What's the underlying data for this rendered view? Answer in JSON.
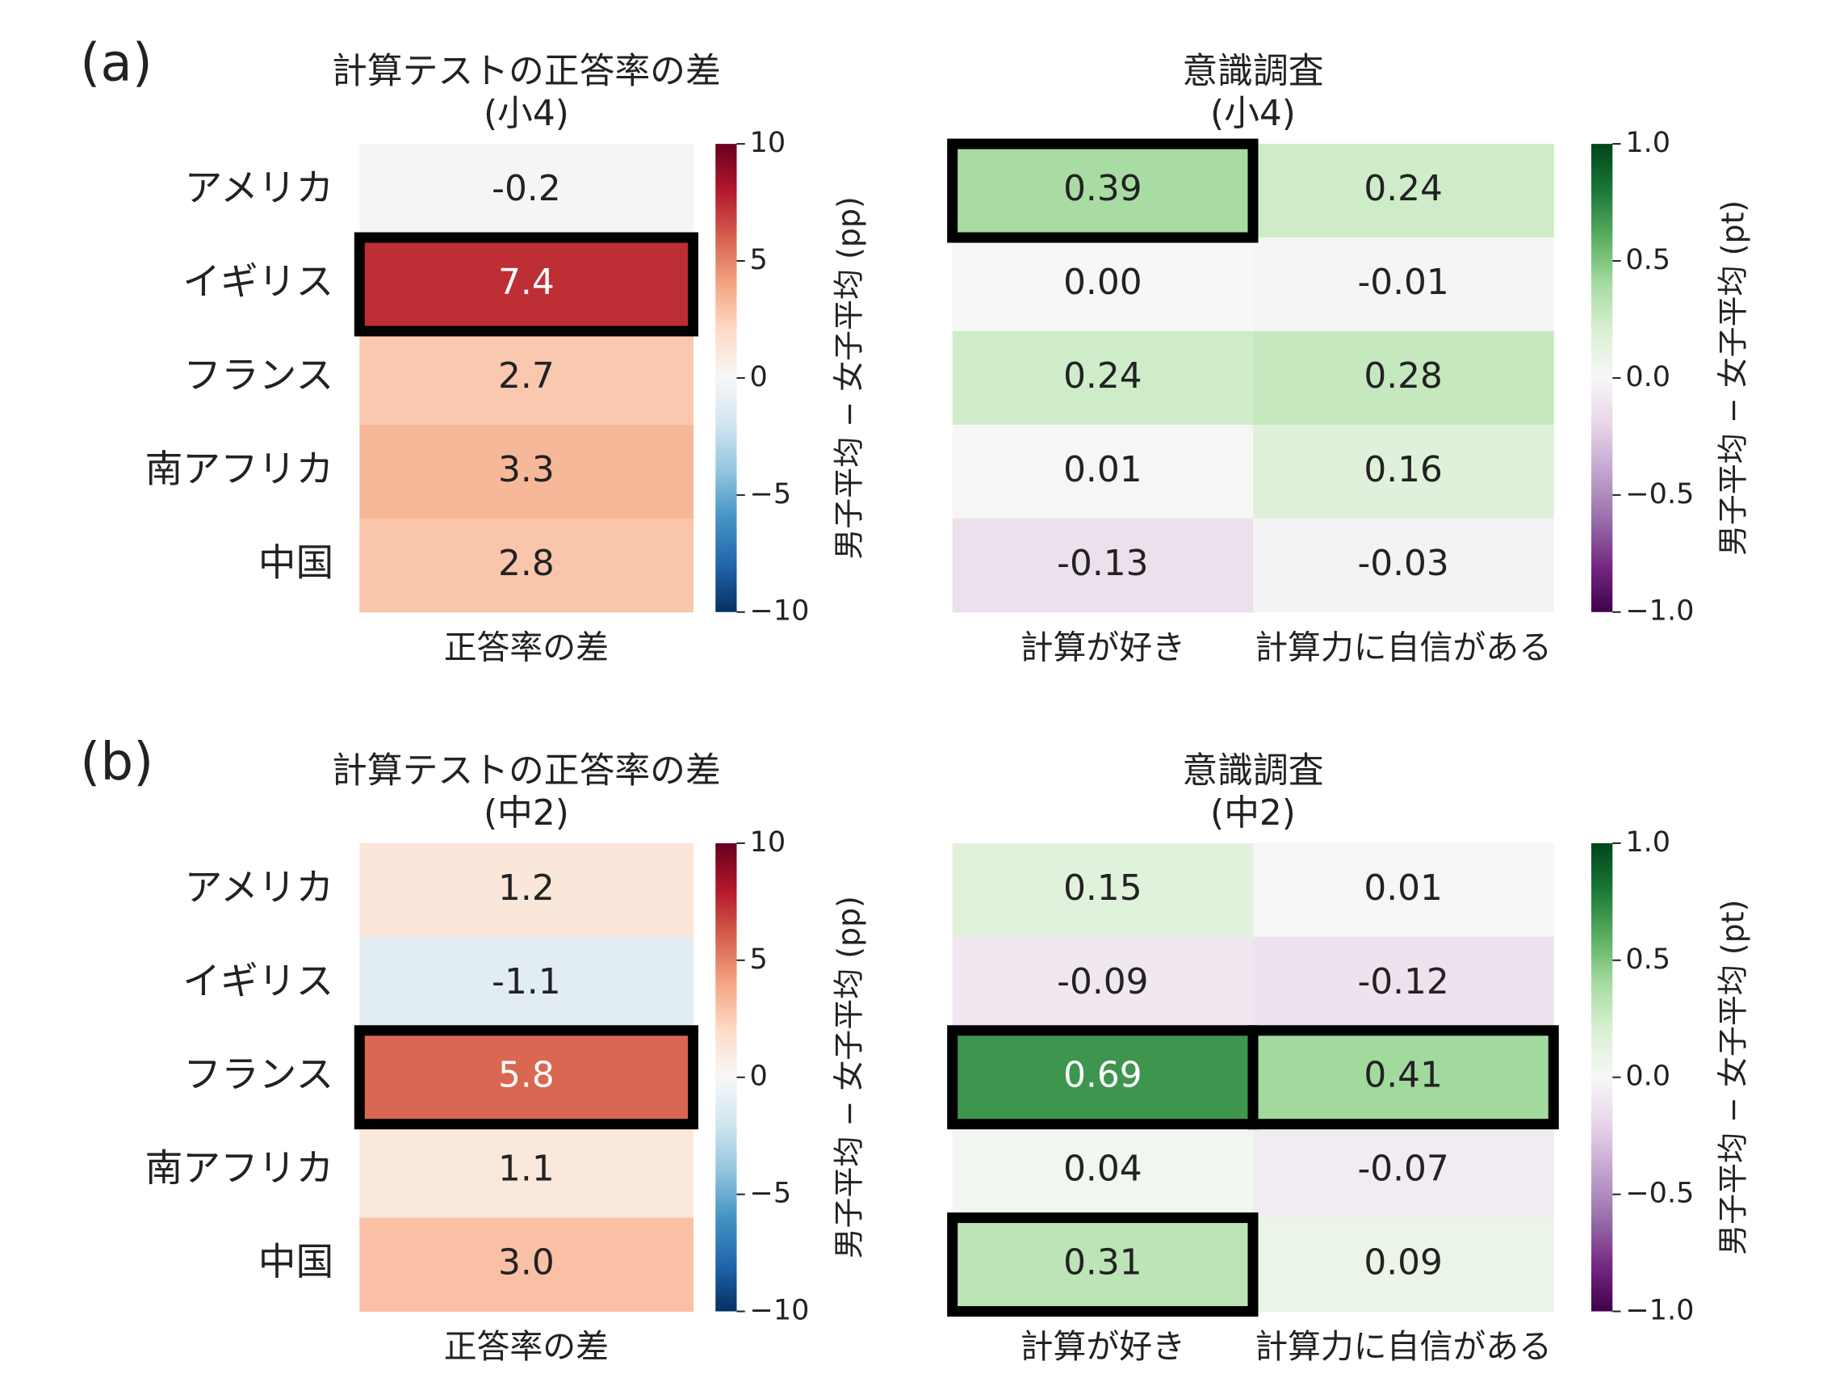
{
  "chart_data": [
    {
      "type": "heatmap",
      "panel_label": "(a)",
      "title": [
        "計算テストの正答率の差",
        "(小4)"
      ],
      "rows": [
        "アメリカ",
        "イギリス",
        "フランス",
        "南アフリカ",
        "中国"
      ],
      "columns": [
        "正答率の差"
      ],
      "values": [
        [
          -0.2
        ],
        [
          7.4
        ],
        [
          2.7
        ],
        [
          3.3
        ],
        [
          2.8
        ]
      ],
      "value_labels": [
        [
          "-0.2"
        ],
        [
          "7.4"
        ],
        [
          "2.7"
        ],
        [
          "3.3"
        ],
        [
          "2.8"
        ]
      ],
      "highlighted": [
        [
          1,
          0
        ]
      ],
      "colormap": "RdBu_r",
      "colorbar_label": "男子平均 − 女子平均 (pp)",
      "clim": [
        -10,
        10
      ],
      "cticks": [
        10,
        5,
        0,
        {
          "value": -5,
          "label": "−5"
        },
        {
          "value": -10,
          "label": "−10"
        }
      ]
    },
    {
      "type": "heatmap",
      "title": [
        "意識調査",
        "(小4)"
      ],
      "columns": [
        "計算が好き",
        "計算力に自信がある"
      ],
      "values": [
        [
          0.39,
          0.24
        ],
        [
          0.0,
          -0.01
        ],
        [
          0.24,
          0.28
        ],
        [
          0.01,
          0.16
        ],
        [
          -0.13,
          -0.03
        ]
      ],
      "value_labels": [
        [
          "0.39",
          "0.24"
        ],
        [
          "0.00",
          "-0.01"
        ],
        [
          "0.24",
          "0.28"
        ],
        [
          "0.01",
          "0.16"
        ],
        [
          "-0.13",
          "-0.03"
        ]
      ],
      "highlighted": [
        [
          0,
          0
        ]
      ],
      "colormap": "PRGn",
      "colorbar_label": "男子平均 − 女子平均 (pt)",
      "clim": [
        -1.0,
        1.0
      ],
      "cticks": [
        {
          "value": 1.0,
          "label": "1.0"
        },
        0.5,
        {
          "value": 0.0,
          "label": "0.0"
        },
        {
          "value": -0.5,
          "label": "−0.5"
        },
        {
          "value": -1.0,
          "label": "−1.0"
        }
      ]
    },
    {
      "type": "heatmap",
      "panel_label": "(b)",
      "title": [
        "計算テストの正答率の差",
        "(中2)"
      ],
      "rows": [
        "アメリカ",
        "イギリス",
        "フランス",
        "南アフリカ",
        "中国"
      ],
      "columns": [
        "正答率の差"
      ],
      "values": [
        [
          1.2
        ],
        [
          -1.1
        ],
        [
          5.8
        ],
        [
          1.1
        ],
        [
          3.0
        ]
      ],
      "value_labels": [
        [
          "1.2"
        ],
        [
          "-1.1"
        ],
        [
          "5.8"
        ],
        [
          "1.1"
        ],
        [
          "3.0"
        ]
      ],
      "highlighted": [
        [
          2,
          0
        ]
      ],
      "colormap": "RdBu_r",
      "colorbar_label": "男子平均 − 女子平均 (pp)",
      "clim": [
        -10,
        10
      ],
      "cticks": [
        10,
        5,
        0,
        {
          "value": -5,
          "label": "−5"
        },
        {
          "value": -10,
          "label": "−10"
        }
      ]
    },
    {
      "type": "heatmap",
      "title": [
        "意識調査",
        "(中2)"
      ],
      "columns": [
        "計算が好き",
        "計算力に自信がある"
      ],
      "values": [
        [
          0.15,
          0.01
        ],
        [
          -0.09,
          -0.12
        ],
        [
          0.69,
          0.41
        ],
        [
          0.04,
          -0.07
        ],
        [
          0.31,
          0.09
        ]
      ],
      "value_labels": [
        [
          "0.15",
          "0.01"
        ],
        [
          "-0.09",
          "-0.12"
        ],
        [
          "0.69",
          "0.41"
        ],
        [
          "0.04",
          "-0.07"
        ],
        [
          "0.31",
          "0.09"
        ]
      ],
      "highlighted": [
        [
          2,
          0
        ],
        [
          2,
          1
        ],
        [
          4,
          0
        ]
      ],
      "colormap": "PRGn",
      "colorbar_label": "男子平均 − 女子平均 (pt)",
      "clim": [
        -1.0,
        1.0
      ],
      "cticks": [
        {
          "value": 1.0,
          "label": "1.0"
        },
        0.5,
        {
          "value": 0.0,
          "label": "0.0"
        },
        {
          "value": -0.5,
          "label": "−0.5"
        },
        {
          "value": -1.0,
          "label": "−1.0"
        }
      ]
    }
  ]
}
